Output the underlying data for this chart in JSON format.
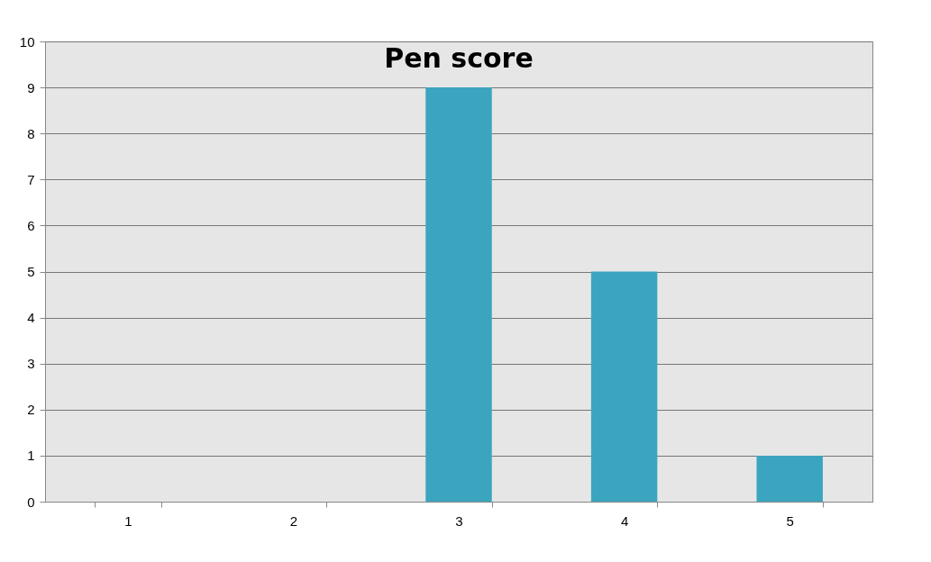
{
  "chart_data": {
    "type": "bar",
    "title": "Pen score",
    "categories": [
      "1",
      "2",
      "3",
      "4",
      "5"
    ],
    "values": [
      0,
      0,
      9,
      5,
      1
    ],
    "color": "#3ba5bf",
    "ylim": [
      0,
      10
    ],
    "yticks": [
      0,
      1,
      2,
      3,
      4,
      5,
      6,
      7,
      8,
      9,
      10
    ],
    "grid": "y"
  }
}
